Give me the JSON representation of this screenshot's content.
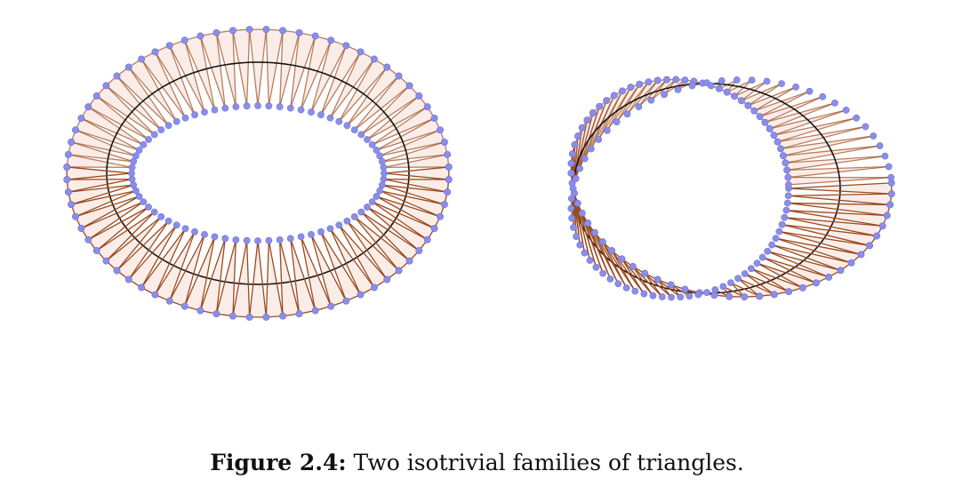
{
  "caption": {
    "label": "Figure 2.4:",
    "text": "Two isotrivial families of triangles."
  },
  "colors": {
    "vertex": "#8b8ee8",
    "vertex_edge": "#6f73d8",
    "edge": "#9b4a1e",
    "face": "#f3d8cc",
    "center_curve": "#111111"
  },
  "figures": [
    {
      "name": "annulus-family",
      "twisted": false,
      "triangles": 72
    },
    {
      "name": "mobius-family",
      "twisted": true,
      "triangles": 72
    }
  ]
}
